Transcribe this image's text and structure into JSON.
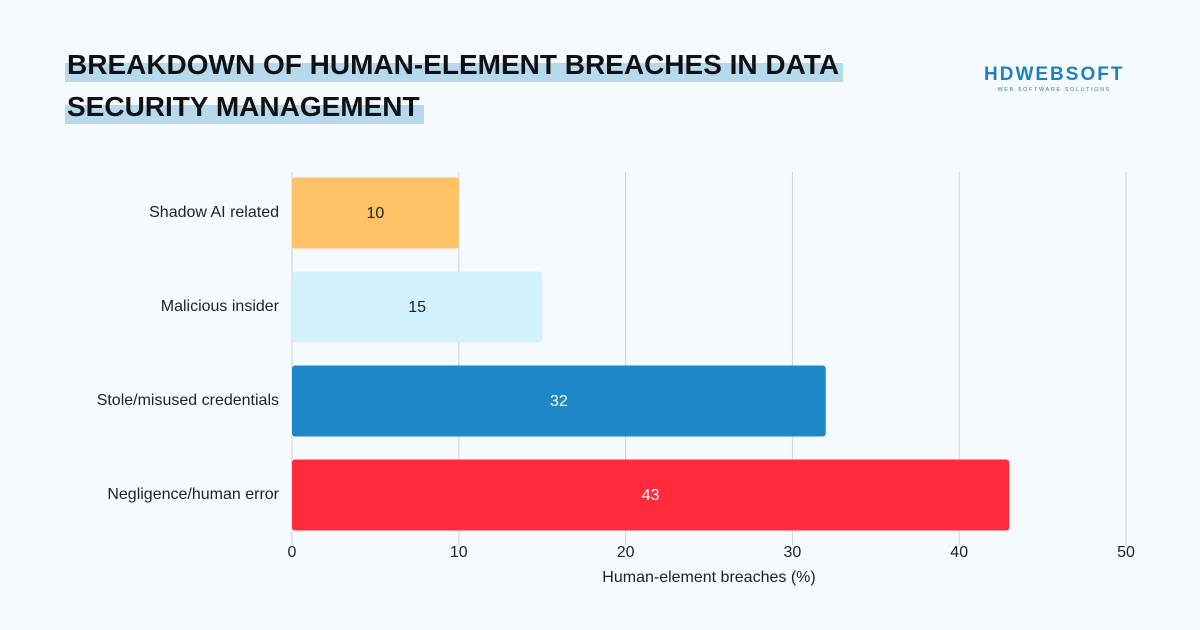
{
  "chart_data": {
    "type": "hbar",
    "title": "BREAKDOWN OF HUMAN-ELEMENT BREACHES IN DATA SECURITY MANAGEMENT",
    "logo": {
      "name": "HDWEBSOFT",
      "tagline": "WEB SOFTWARE SOLUTIONS"
    },
    "categories": [
      "Shadow AI related",
      "Malicious insider",
      "Stole/misused credentials",
      "Negligence/human error"
    ],
    "values": [
      10,
      15,
      32,
      43
    ],
    "colors": [
      "#ffc266",
      "#d3f1fc",
      "#1e87c7",
      "#ff2a3a"
    ],
    "xlabel": "Human-element breaches (%)",
    "xlim": [
      0,
      50
    ],
    "xticks": [
      0,
      10,
      20,
      30,
      40,
      50
    ],
    "grid": true
  }
}
